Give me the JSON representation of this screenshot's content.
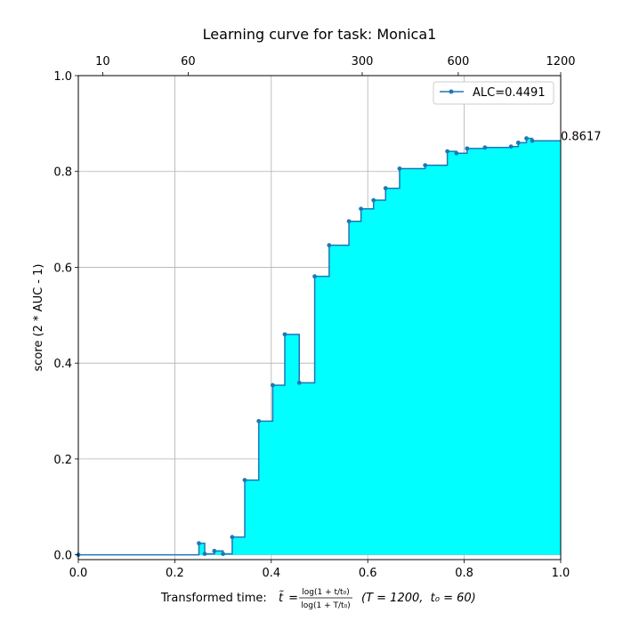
{
  "chart_data": {
    "type": "area",
    "title": "Learning curve for task: Monica1",
    "xlabel": {
      "prefix": "Transformed time: ",
      "var": "t̃",
      "eq": " = ",
      "num": "log(1 + t/t₀)",
      "den": "log(1 + T/t₀)",
      "suffix": "(T = 1200,  t₀ = 60)"
    },
    "ylabel": "score (2 * AUC - 1)",
    "xlim": [
      0,
      1
    ],
    "ylim": [
      -0.01,
      1.0
    ],
    "x_ticks": [
      "0.0",
      "0.2",
      "0.4",
      "0.6",
      "0.8",
      "1.0"
    ],
    "y_ticks": [
      "0.0",
      "0.2",
      "0.4",
      "0.6",
      "0.8",
      "1.0"
    ],
    "top_axis_ticks": [
      {
        "t": 10,
        "label": "10"
      },
      {
        "t": 60,
        "label": "60"
      },
      {
        "t": 300,
        "label": "300"
      },
      {
        "t": 600,
        "label": "600"
      },
      {
        "t": 1200,
        "label": "1200"
      }
    ],
    "top_axis_T": 1200,
    "top_axis_t0": 60,
    "grid": true,
    "legend": {
      "label": "ALC=0.4491",
      "position": "top-right"
    },
    "final_score_label": "0.8617",
    "fill_color": "#00ffff",
    "line_color": "#1f77b4",
    "final_line_color": "#ffa500",
    "points": [
      {
        "x": 0.0,
        "y": 0.0
      },
      {
        "x": 0.25,
        "y": 0.024
      },
      {
        "x": 0.262,
        "y": 0.002
      },
      {
        "x": 0.282,
        "y": 0.008
      },
      {
        "x": 0.3,
        "y": 0.002
      },
      {
        "x": 0.319,
        "y": 0.037
      },
      {
        "x": 0.345,
        "y": 0.156
      },
      {
        "x": 0.374,
        "y": 0.279
      },
      {
        "x": 0.403,
        "y": 0.354
      },
      {
        "x": 0.428,
        "y": 0.46
      },
      {
        "x": 0.458,
        "y": 0.359
      },
      {
        "x": 0.49,
        "y": 0.581
      },
      {
        "x": 0.52,
        "y": 0.646
      },
      {
        "x": 0.561,
        "y": 0.696
      },
      {
        "x": 0.586,
        "y": 0.722
      },
      {
        "x": 0.612,
        "y": 0.74
      },
      {
        "x": 0.637,
        "y": 0.765
      },
      {
        "x": 0.666,
        "y": 0.806
      },
      {
        "x": 0.719,
        "y": 0.813
      },
      {
        "x": 0.765,
        "y": 0.842
      },
      {
        "x": 0.784,
        "y": 0.838
      },
      {
        "x": 0.806,
        "y": 0.848
      },
      {
        "x": 0.843,
        "y": 0.85
      },
      {
        "x": 0.897,
        "y": 0.852
      },
      {
        "x": 0.912,
        "y": 0.86
      },
      {
        "x": 0.929,
        "y": 0.869
      },
      {
        "x": 0.941,
        "y": 0.864
      },
      {
        "x": 1.0,
        "y": 0.8617
      }
    ]
  }
}
